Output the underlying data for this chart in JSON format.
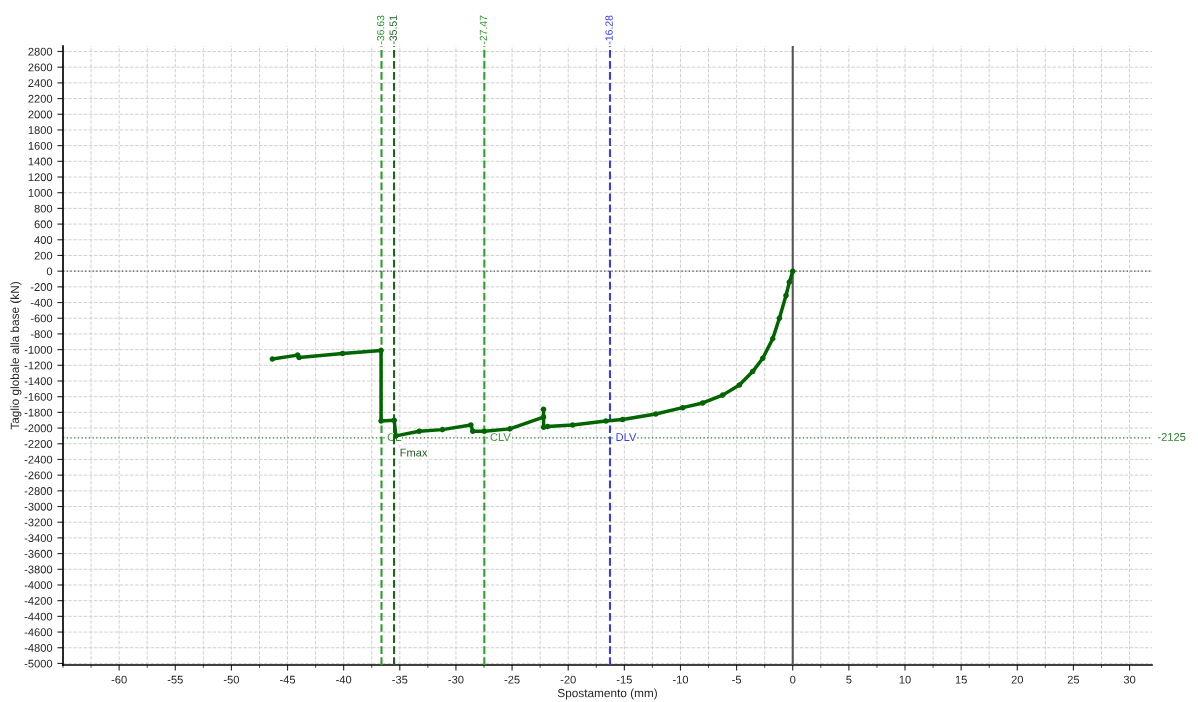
{
  "chart_data": {
    "type": "line",
    "xlabel": "Spostamento (mm)",
    "ylabel": "Taglio globale alla base (kN)",
    "xlim": [
      -65,
      32
    ],
    "ylim": [
      -5020,
      2870
    ],
    "xticks": [
      -60,
      -55,
      -50,
      -45,
      -40,
      -35,
      -30,
      -25,
      -20,
      -15,
      -10,
      -5,
      0,
      5,
      10,
      15,
      20,
      25,
      30
    ],
    "yticks": [
      -5000,
      -4800,
      -4600,
      -4400,
      -4200,
      -4000,
      -3800,
      -3600,
      -3400,
      -3200,
      -3000,
      -2800,
      -2600,
      -2400,
      -2200,
      -2000,
      -1800,
      -1600,
      -1400,
      -1200,
      -1000,
      -800,
      -600,
      -400,
      -200,
      0,
      200,
      400,
      600,
      800,
      1000,
      1200,
      1400,
      1600,
      1800,
      2000,
      2200,
      2400,
      2600,
      2800
    ],
    "x2lim": [
      -65,
      32
    ],
    "x2ticks": [
      {
        "value": -36.63,
        "label": "-36.63"
      },
      {
        "value": -35.51,
        "label": "-35.51"
      },
      {
        "value": -27.47,
        "label": "-27.47"
      },
      {
        "value": -16.28,
        "label": "-16.28"
      }
    ],
    "grid": true,
    "marker": "circle",
    "line_style": "solid",
    "series": [
      {
        "color": "#006400",
        "x": [
          0,
          -0.3,
          -0.6,
          -1.19,
          -1.78,
          -2.67,
          -3.57,
          -4.75,
          -6.24,
          -8.02,
          -9.8,
          -12.2,
          -15.15,
          -16.64,
          -19.6,
          -21.84,
          -22.19,
          -22.2,
          -22.2,
          -25.2,
          -27.48,
          -28.5,
          -28.67,
          -31.2,
          -33.27,
          -35.35,
          -35.5,
          -36.67,
          -36.67,
          -40.1,
          -43.97,
          -44.1,
          -46.35
        ],
        "values": [
          0,
          -140,
          -310,
          -600,
          -860,
          -1110,
          -1280,
          -1450,
          -1580,
          -1680,
          -1740,
          -1820,
          -1890,
          -1910,
          -1960,
          -1980,
          -1990,
          -1760,
          -1860,
          -2010,
          -2040,
          -2040,
          -1960,
          -2020,
          -2040,
          -2100,
          -1900,
          -1910,
          -1010,
          -1050,
          -1100,
          -1070,
          -1120
        ]
      }
    ],
    "ref_lines": [
      {
        "axis": "x",
        "value": -36.63,
        "label": "CL",
        "color": "#2e9a2e",
        "line_style": "dashed"
      },
      {
        "axis": "x",
        "value": -35.51,
        "label": "Fmax",
        "color": "#1f5f1f",
        "line_style": "dashed"
      },
      {
        "axis": "x",
        "value": -27.47,
        "label": "CLV",
        "color": "#33a033",
        "line_style": "dashed"
      },
      {
        "axis": "x",
        "value": -16.28,
        "label": "DLV",
        "color": "#3a3af0",
        "line_style": "dashed"
      },
      {
        "axis": "y",
        "value": -2125,
        "label": "-2125",
        "color": "#2e7d2e",
        "line_style": "dotted"
      },
      {
        "axis": "y",
        "value": 0,
        "label": null,
        "color": "#555555",
        "line_style": "dotted"
      },
      {
        "axis": "x",
        "value": 0,
        "label": null,
        "color": "#555555",
        "line_style": "solid"
      }
    ]
  }
}
